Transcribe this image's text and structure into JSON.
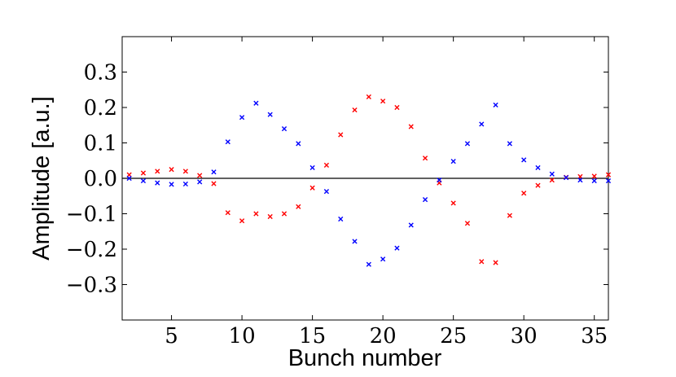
{
  "chart_data": {
    "type": "scatter",
    "title": "",
    "xlabel": "Bunch number",
    "ylabel": "Amplitude [a.u.]",
    "xlim": [
      1.5,
      36
    ],
    "ylim": [
      -0.4,
      0.4
    ],
    "xticks": [
      5,
      10,
      15,
      20,
      25,
      30,
      35
    ],
    "yticks": [
      -0.3,
      -0.2,
      -0.1,
      0.0,
      0.1,
      0.2,
      0.3
    ],
    "xtick_labels": [
      "5",
      "10",
      "15",
      "20",
      "25",
      "30",
      "35"
    ],
    "ytick_labels": [
      "−0.3",
      "−0.2",
      "−0.1",
      "0.0",
      "0.1",
      "0.2",
      "0.3"
    ],
    "zero_line": true,
    "grid": false,
    "marker": "x",
    "series": [
      {
        "color": "#ff0000",
        "x": [
          2,
          3,
          4,
          5,
          6,
          7,
          8,
          9,
          10,
          11,
          12,
          13,
          14,
          15,
          16,
          17,
          18,
          19,
          20,
          21,
          22,
          23,
          24,
          25,
          26,
          27,
          28,
          29,
          30,
          31,
          32,
          33,
          34,
          35,
          36
        ],
        "y": [
          0.01,
          0.015,
          0.02,
          0.025,
          0.02,
          0.008,
          -0.015,
          -0.097,
          -0.12,
          -0.1,
          -0.108,
          -0.1,
          -0.08,
          -0.027,
          0.037,
          0.123,
          0.193,
          0.23,
          0.218,
          0.2,
          0.146,
          0.057,
          -0.013,
          -0.07,
          -0.127,
          -0.235,
          -0.238,
          -0.105,
          -0.042,
          -0.02,
          -0.005,
          0.003,
          0.005,
          0.006,
          0.01
        ]
      },
      {
        "color": "#0000ff",
        "x": [
          2,
          3,
          4,
          5,
          6,
          7,
          8,
          9,
          10,
          11,
          12,
          13,
          14,
          15,
          16,
          17,
          18,
          19,
          20,
          21,
          22,
          23,
          24,
          25,
          26,
          27,
          28,
          29,
          30,
          31,
          32,
          33,
          34,
          35,
          36
        ],
        "y": [
          0.0,
          -0.007,
          -0.013,
          -0.017,
          -0.016,
          -0.01,
          0.018,
          0.103,
          0.172,
          0.212,
          0.18,
          0.14,
          0.098,
          0.03,
          -0.037,
          -0.115,
          -0.178,
          -0.243,
          -0.228,
          -0.197,
          -0.132,
          -0.06,
          -0.005,
          0.048,
          0.098,
          0.153,
          0.207,
          0.098,
          0.052,
          0.03,
          0.012,
          0.002,
          -0.005,
          -0.007,
          -0.007
        ]
      }
    ]
  }
}
